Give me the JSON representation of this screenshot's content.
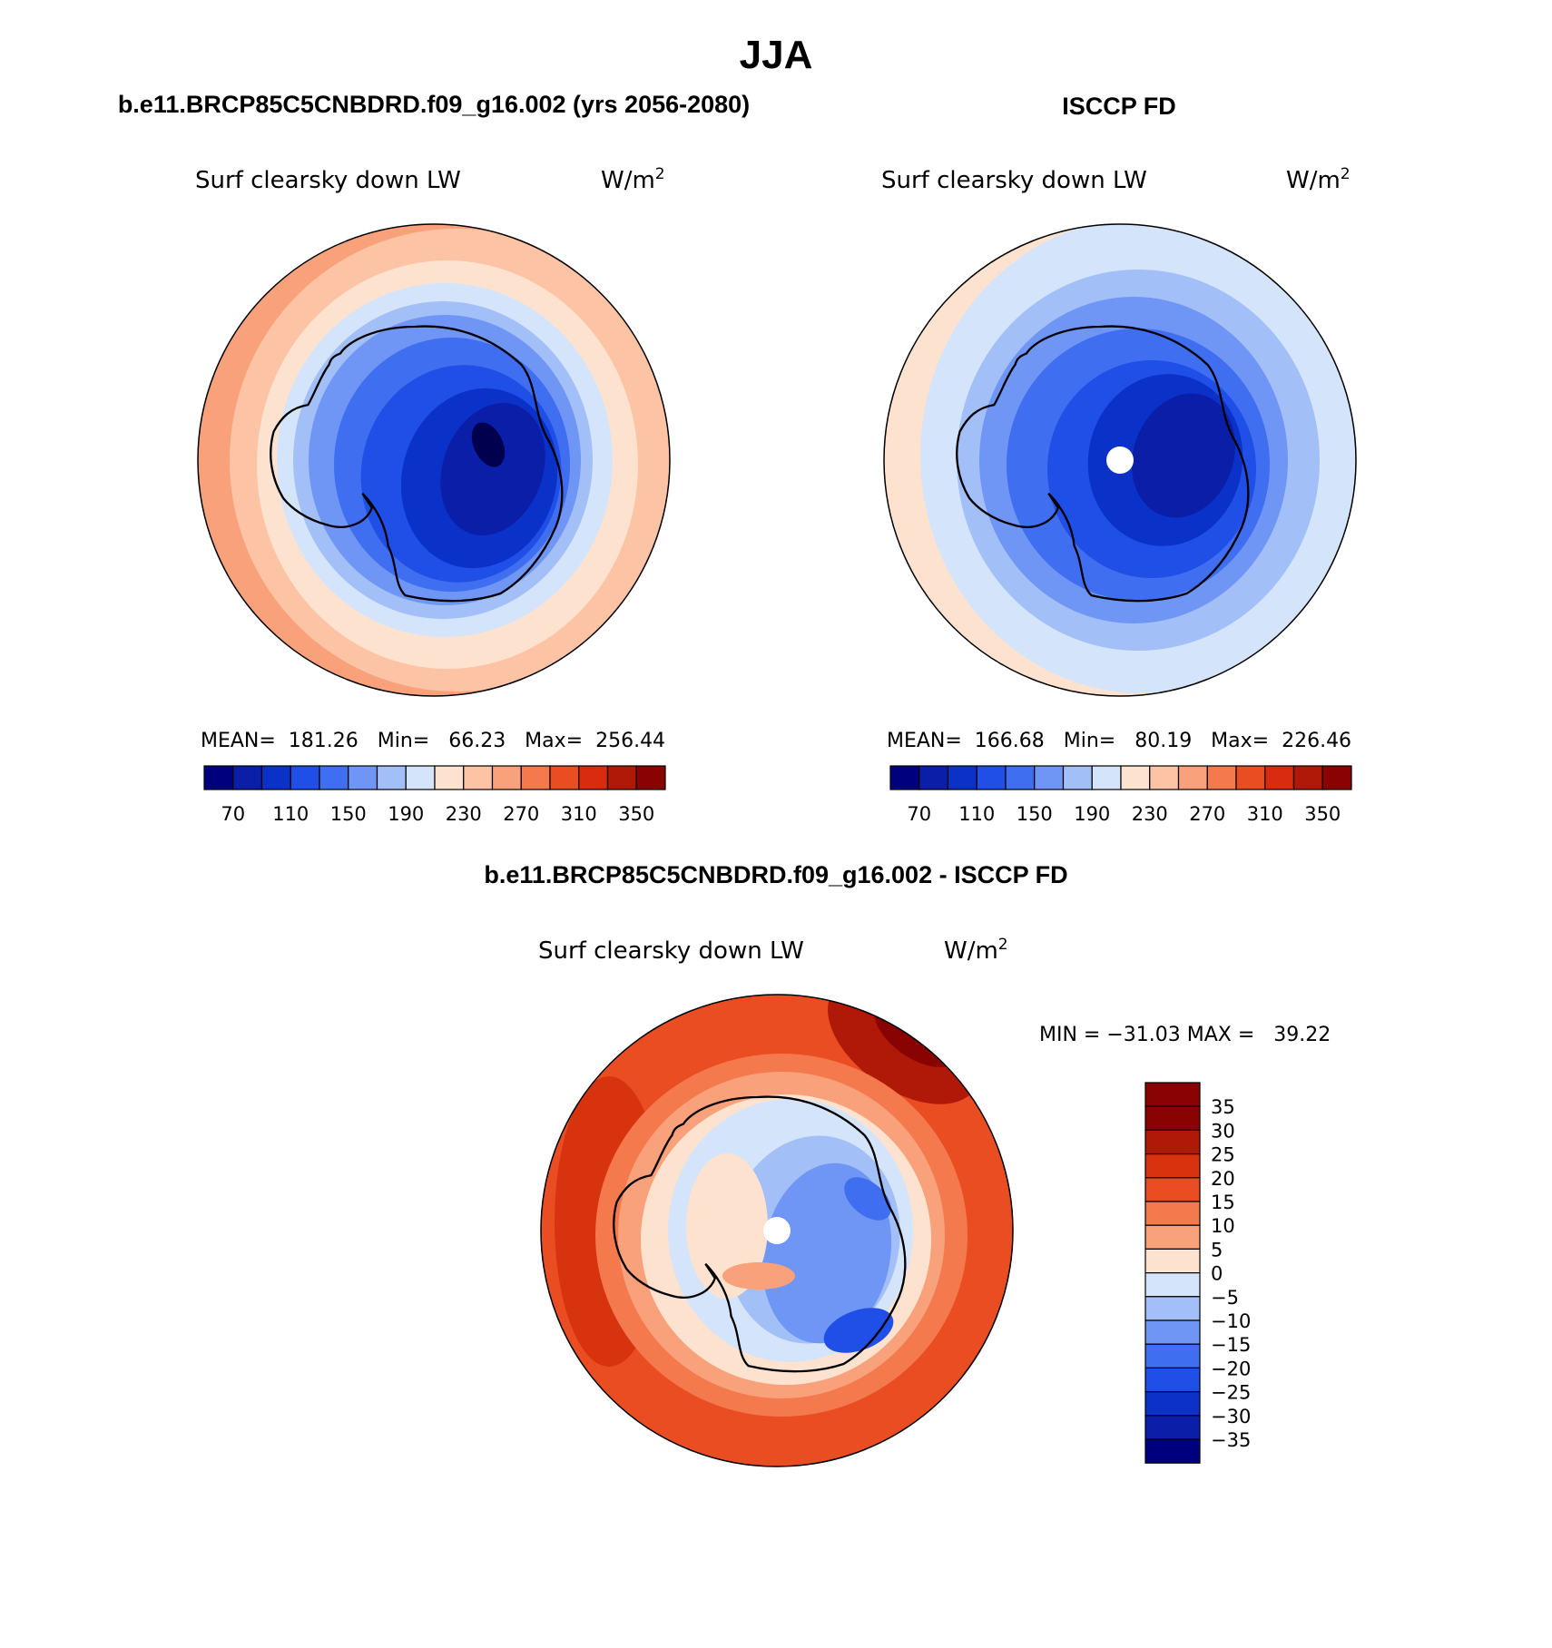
{
  "page_title": "JJA",
  "chart_data": [
    {
      "type": "heatmap",
      "id": "model",
      "panel_title": "b.e11.BRCP85C5CNBDRD.f09_g16.002 (yrs 2056-2080)",
      "variable": "Surf clearsky down LW",
      "units_base": "W/m",
      "units_exp": "2",
      "stats_text": "MEAN=  181.26   Min=   66.23   Max=  256.44",
      "stats": {
        "mean": 181.26,
        "min": 66.23,
        "max": 256.44
      },
      "colorbar_ticks": [
        "70",
        "110",
        "150",
        "190",
        "230",
        "270",
        "310",
        "350"
      ],
      "colorbar_levels": [
        70,
        90,
        110,
        130,
        150,
        170,
        190,
        210,
        230,
        250,
        270,
        290,
        310,
        330,
        350
      ],
      "has_pole_hole": false
    },
    {
      "type": "heatmap",
      "id": "obs",
      "panel_title": "ISCCP FD",
      "variable": "Surf clearsky down LW",
      "units_base": "W/m",
      "units_exp": "2",
      "stats_text": "MEAN=  166.68   Min=   80.19   Max=  226.46",
      "stats": {
        "mean": 166.68,
        "min": 80.19,
        "max": 226.46
      },
      "colorbar_ticks": [
        "70",
        "110",
        "150",
        "190",
        "230",
        "270",
        "310",
        "350"
      ],
      "colorbar_levels": [
        70,
        90,
        110,
        130,
        150,
        170,
        190,
        210,
        230,
        250,
        270,
        290,
        310,
        330,
        350
      ],
      "has_pole_hole": true
    },
    {
      "type": "heatmap",
      "id": "diff",
      "panel_title": "b.e11.BRCP85C5CNBDRD.f09_g16.002 - ISCCP FD",
      "variable": "Surf clearsky down LW",
      "units_base": "W/m",
      "units_exp": "2",
      "minmax_text": "MIN = −31.03 MAX =   39.22",
      "stats": {
        "min": -31.03,
        "max": 39.22
      },
      "colorbar_ticks": [
        "35",
        "30",
        "25",
        "20",
        "15",
        "10",
        "5",
        "0",
        "−5",
        "−10",
        "−15",
        "−20",
        "−25",
        "−30",
        "−35"
      ],
      "colorbar_levels": [
        35,
        30,
        25,
        20,
        15,
        10,
        5,
        0,
        -5,
        -10,
        -15,
        -20,
        -25,
        -30,
        -35
      ],
      "has_pole_hole": true
    }
  ],
  "palette": {
    "abs": [
      "#00007f",
      "#0a1ea8",
      "#0b32c8",
      "#1f4fe6",
      "#3f6ef0",
      "#6f96f4",
      "#a3bff8",
      "#d4e4fb",
      "#fde3cf",
      "#fcc4a5",
      "#f9a17b",
      "#f47a4e",
      "#eb4d23",
      "#d82b0f",
      "#b01807",
      "#8a0303"
    ],
    "diff": [
      "#8a0303",
      "#b01807",
      "#d8330f",
      "#eb4d23",
      "#f47a4e",
      "#f9a17b",
      "#fde3cf",
      "#d4e4fb",
      "#a3bff8",
      "#6f96f4",
      "#3f6ef0",
      "#1f4fe6",
      "#0b32c8",
      "#0a1ea8",
      "#00007f"
    ]
  }
}
